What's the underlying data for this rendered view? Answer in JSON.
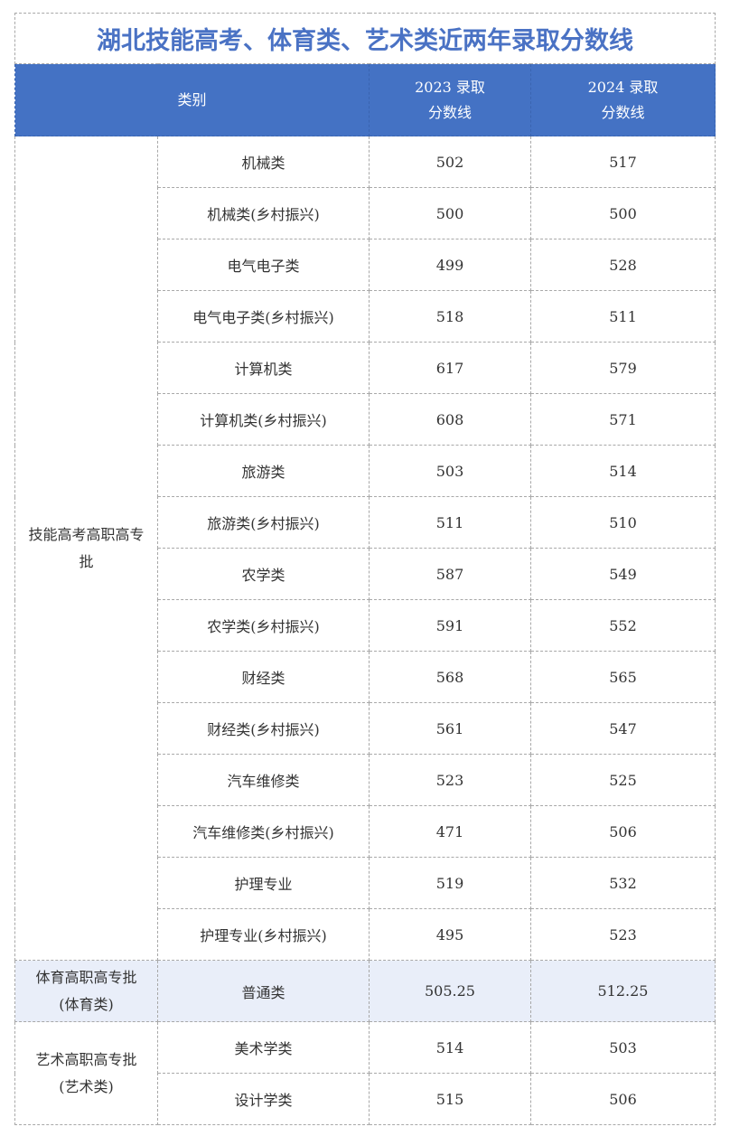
{
  "title": "湖北技能高考、体育类、艺术类近两年录取分数线",
  "header": {
    "category": "类别",
    "y2023_line1": "2023 录取",
    "y2023_line2": "分数线",
    "y2024_line1": "2024 录取",
    "y2024_line2": "分数线"
  },
  "colors": {
    "header_bg": "#4472c4",
    "title": "#4a72c4",
    "highlight_row": "#e9eef9"
  },
  "groups": {
    "skills": {
      "label": "技能高考高职高专批",
      "rows": [
        {
          "name": "机械类",
          "y2023": "502",
          "y2024": "517"
        },
        {
          "name": "机械类(乡村振兴)",
          "y2023": "500",
          "y2024": "500"
        },
        {
          "name": "电气电子类",
          "y2023": "499",
          "y2024": "528"
        },
        {
          "name": "电气电子类(乡村振兴)",
          "y2023": "518",
          "y2024": "511"
        },
        {
          "name": "计算机类",
          "y2023": "617",
          "y2024": "579"
        },
        {
          "name": "计算机类(乡村振兴)",
          "y2023": "608",
          "y2024": "571"
        },
        {
          "name": "旅游类",
          "y2023": "503",
          "y2024": "514"
        },
        {
          "name": "旅游类(乡村振兴)",
          "y2023": "511",
          "y2024": "510"
        },
        {
          "name": "农学类",
          "y2023": "587",
          "y2024": "549"
        },
        {
          "name": "农学类(乡村振兴)",
          "y2023": "591",
          "y2024": "552"
        },
        {
          "name": "财经类",
          "y2023": "568",
          "y2024": "565"
        },
        {
          "name": "财经类(乡村振兴)",
          "y2023": "561",
          "y2024": "547"
        },
        {
          "name": "汽车维修类",
          "y2023": "523",
          "y2024": "525"
        },
        {
          "name": "汽车维修类(乡村振兴)",
          "y2023": "471",
          "y2024": "506"
        },
        {
          "name": "护理专业",
          "y2023": "519",
          "y2024": "532"
        },
        {
          "name": "护理专业(乡村振兴)",
          "y2023": "495",
          "y2024": "523"
        }
      ]
    },
    "sports": {
      "label_line1": "体育高职高专批",
      "label_line2": "(体育类)",
      "rows": [
        {
          "name": "普通类",
          "y2023": "505.25",
          "y2024": "512.25"
        }
      ]
    },
    "art": {
      "label_line1": "艺术高职高专批",
      "label_line2": "(艺术类)",
      "rows": [
        {
          "name": "美术学类",
          "y2023": "514",
          "y2024": "503"
        },
        {
          "name": "设计学类",
          "y2023": "515",
          "y2024": "506"
        }
      ]
    }
  }
}
